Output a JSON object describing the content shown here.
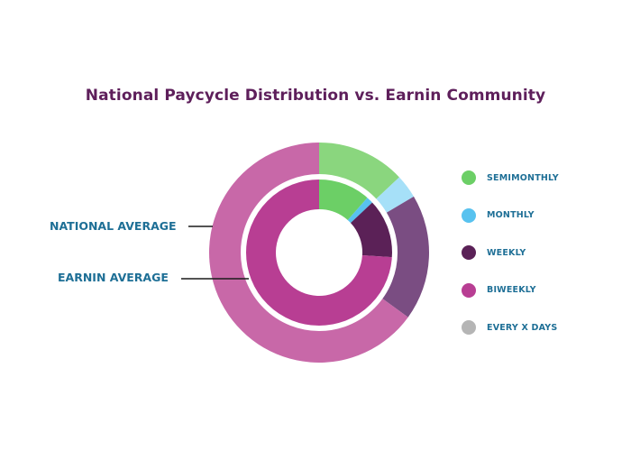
{
  "chart_data": {
    "type": "pie",
    "title": "National Paycycle Distribution vs. Earnin Community",
    "categories": [
      "SEMIMONTHLY",
      "MONTHLY",
      "WEEKLY",
      "BIWEEKLY",
      "EVERY X DAYS"
    ],
    "series": [
      {
        "name": "NATIONAL AVERAGE",
        "ring": "outer",
        "values": [
          0.13,
          0.035,
          0.185,
          0.65,
          0.0
        ]
      },
      {
        "name": "EARNIN AVERAGE",
        "ring": "inner",
        "values": [
          0.115,
          0.015,
          0.13,
          0.74,
          0.0
        ]
      }
    ],
    "colors": {
      "outer": [
        "#8ad67e",
        "#a6e0f8",
        "#7a4d82",
        "#c868a8",
        "#b0b0b0"
      ],
      "inner": [
        "#6ccf66",
        "#58c2ef",
        "#5b2157",
        "#b83e93",
        "#b0b0b0"
      ]
    },
    "legend": {
      "placement": "right",
      "colors": [
        "#6ccf66",
        "#58c2ef",
        "#5b2157",
        "#b83e93",
        "#b5b5b5"
      ]
    }
  }
}
